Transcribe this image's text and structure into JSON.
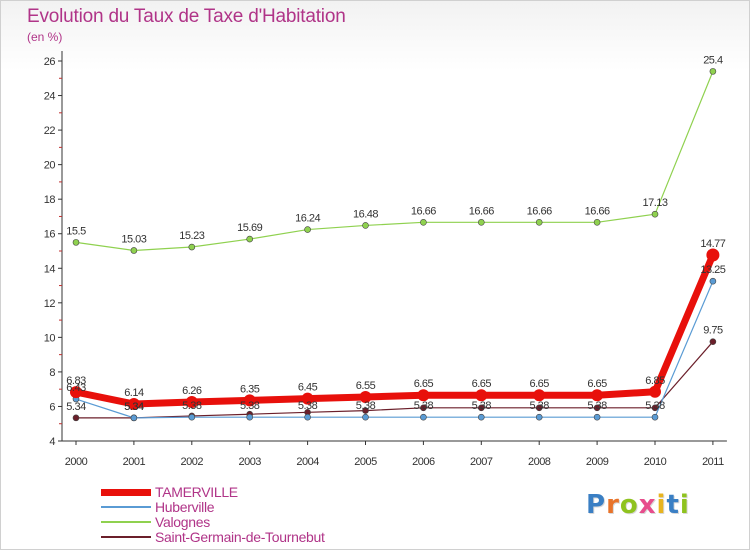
{
  "title": "Evolution du Taux de Taxe d'Habitation",
  "unit": "(en %)",
  "logo": {
    "text": "Proxiti",
    "letter_colors": [
      "#3a7fc4",
      "#e8732a",
      "#8fc31f",
      "#e74d8c",
      "#e8b41f",
      "#3a7fc4",
      "#8fc31f"
    ]
  },
  "chart_data": {
    "type": "line",
    "title": "Evolution du Taux de Taxe d'Habitation",
    "ylabel": "(en %)",
    "xlabel": "",
    "x": [
      "2000",
      "2001",
      "2002",
      "2003",
      "2004",
      "2005",
      "2006",
      "2007",
      "2008",
      "2009",
      "2010",
      "2011"
    ],
    "yticks": [
      4,
      6,
      8,
      10,
      12,
      14,
      16,
      18,
      20,
      22,
      24,
      26
    ],
    "ylim": [
      4,
      26
    ],
    "grid": false,
    "legend_position": "bottom-left",
    "series": [
      {
        "name": "TAMERVILLE",
        "color": "#e8100b",
        "values": [
          6.83,
          6.14,
          6.26,
          6.35,
          6.45,
          6.55,
          6.65,
          6.65,
          6.65,
          6.65,
          6.85,
          14.77
        ],
        "labels": [
          "6.83",
          "6.14",
          "6.26",
          "6.35",
          "6.45",
          "6.55",
          "6.65",
          "6.65",
          "6.65",
          "6.65",
          "6.85",
          "14.77"
        ],
        "bold": true
      },
      {
        "name": "Huberville",
        "color": "#5a9bd4",
        "values": [
          6.43,
          5.34,
          5.38,
          5.38,
          5.38,
          5.38,
          5.38,
          5.38,
          5.38,
          5.38,
          5.38,
          13.25
        ],
        "labels": [
          "6.43",
          "5.34",
          "5.38",
          "5.38",
          "5.38",
          "5.38",
          "5.38",
          "5.38",
          "5.38",
          "5.38",
          "5.38",
          "13.25"
        ]
      },
      {
        "name": "Valognes",
        "color": "#8fd14f",
        "values": [
          15.5,
          15.03,
          15.23,
          15.69,
          16.24,
          16.48,
          16.66,
          16.66,
          16.66,
          16.66,
          17.13,
          25.4
        ],
        "labels": [
          "15.5",
          "15.03",
          "15.23",
          "15.69",
          "16.24",
          "16.48",
          "16.66",
          "16.66",
          "16.66",
          "16.66",
          "17.13",
          "25.4"
        ]
      },
      {
        "name": "Saint-Germain-de-Tournebut",
        "color": "#6b1f2a",
        "values": [
          5.34,
          5.34,
          5.45,
          5.55,
          5.66,
          5.76,
          5.92,
          5.92,
          5.92,
          5.92,
          5.92,
          9.75
        ],
        "labels": [
          "5.34",
          "5.34",
          "",
          "",
          "",
          "",
          "",
          "",
          "",
          "",
          "",
          "9.75"
        ]
      }
    ]
  }
}
